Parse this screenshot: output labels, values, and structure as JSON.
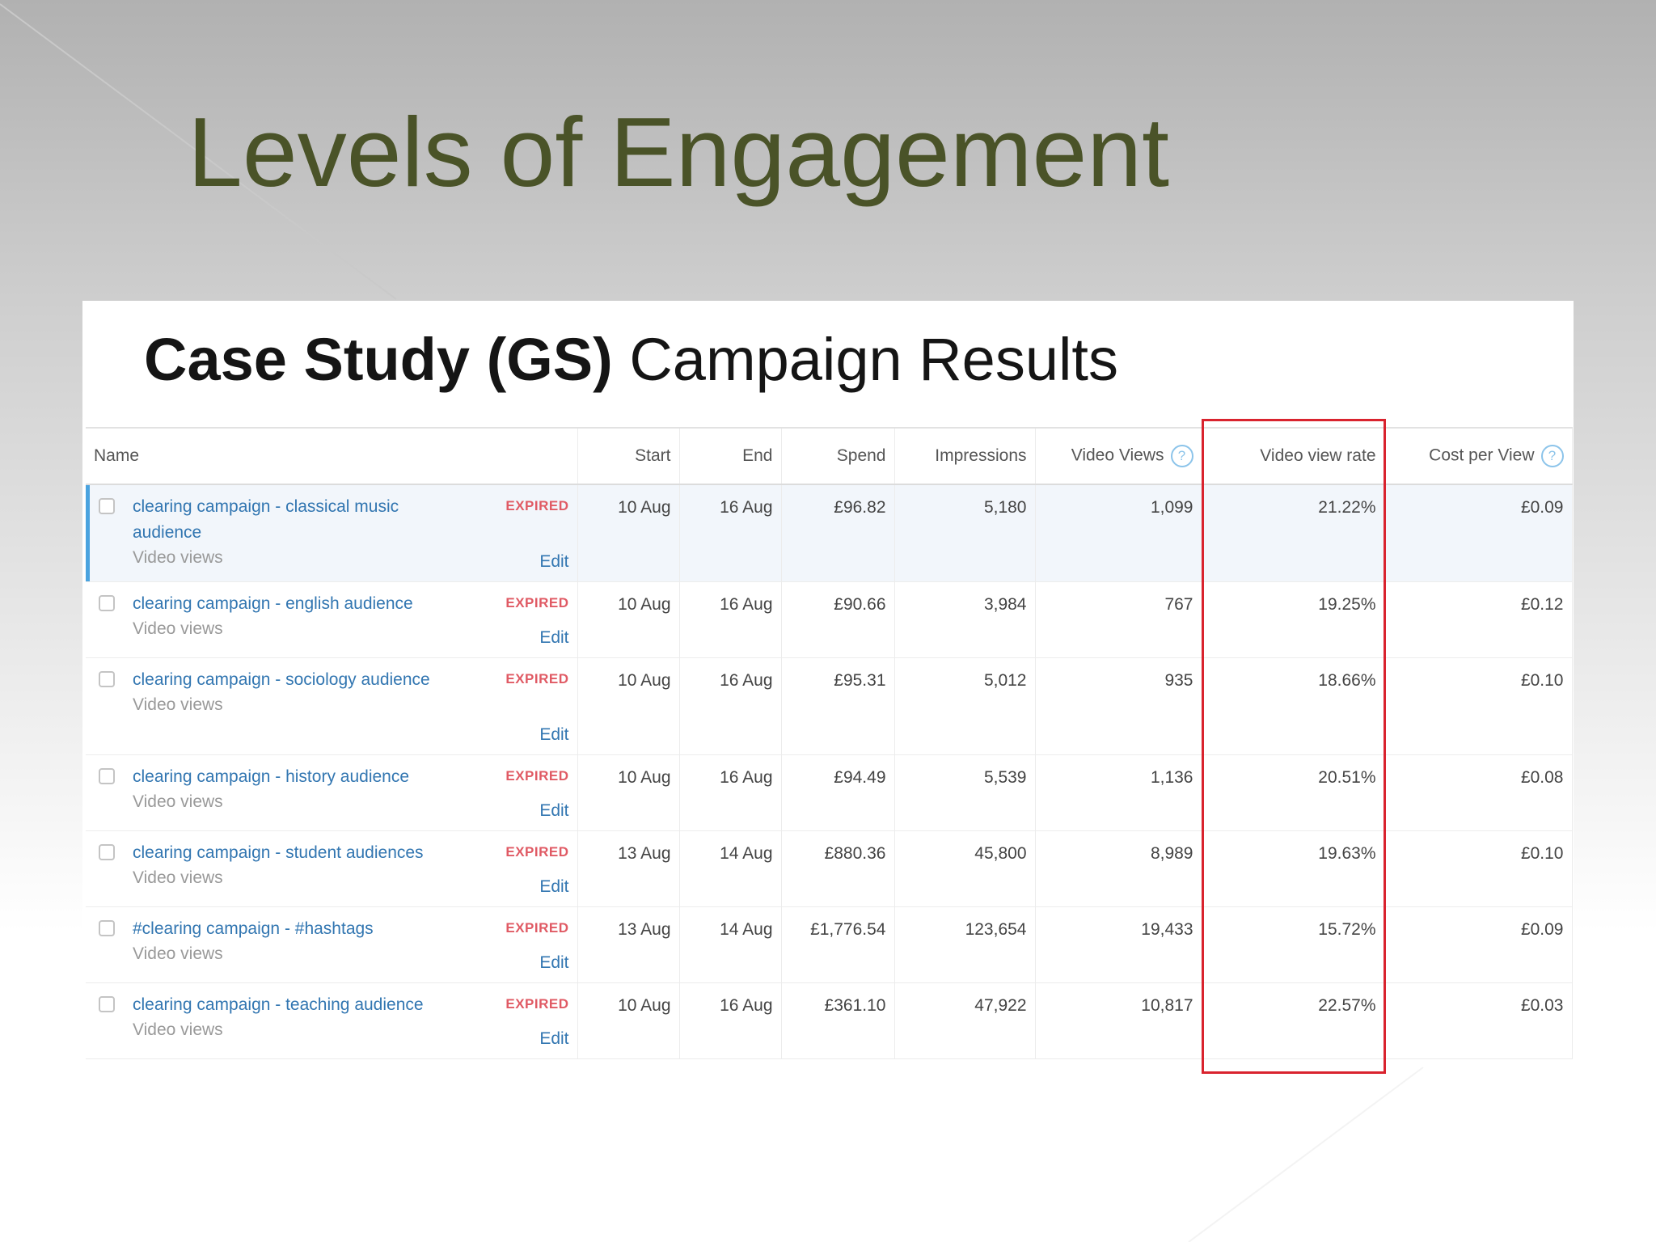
{
  "slide": {
    "title": "Levels of Engagement"
  },
  "panel": {
    "heading_bold": "Case Study (GS)",
    "heading_rest": "Campaign Results"
  },
  "table": {
    "headers": {
      "name": "Name",
      "start": "Start",
      "end": "End",
      "spend": "Spend",
      "impressions": "Impressions",
      "video_views": "Video Views",
      "video_view_rate": "Video view rate",
      "cost_per_view": "Cost per View",
      "help_glyph": "?"
    },
    "highlighted_column": "Video view rate",
    "rows": [
      {
        "name": "clearing campaign - classical music audience",
        "type": "Video views",
        "status": "EXPIRED",
        "action": "Edit",
        "start": "10 Aug",
        "end": "16 Aug",
        "spend": "£96.82",
        "impressions": "5,180",
        "video_views": "1,099",
        "video_view_rate": "21.22%",
        "cost_per_view": "£0.09"
      },
      {
        "name": "clearing campaign - english audience",
        "type": "Video views",
        "status": "EXPIRED",
        "action": "Edit",
        "start": "10 Aug",
        "end": "16 Aug",
        "spend": "£90.66",
        "impressions": "3,984",
        "video_views": "767",
        "video_view_rate": "19.25%",
        "cost_per_view": "£0.12"
      },
      {
        "name": "clearing campaign - sociology audience",
        "type": "Video views",
        "status": "EXPIRED",
        "action": "Edit",
        "start": "10 Aug",
        "end": "16 Aug",
        "spend": "£95.31",
        "impressions": "5,012",
        "video_views": "935",
        "video_view_rate": "18.66%",
        "cost_per_view": "£0.10"
      },
      {
        "name": "clearing campaign - history audience",
        "type": "Video views",
        "status": "EXPIRED",
        "action": "Edit",
        "start": "10 Aug",
        "end": "16 Aug",
        "spend": "£94.49",
        "impressions": "5,539",
        "video_views": "1,136",
        "video_view_rate": "20.51%",
        "cost_per_view": "£0.08"
      },
      {
        "name": "clearing campaign - student audiences",
        "type": "Video views",
        "status": "EXPIRED",
        "action": "Edit",
        "start": "13 Aug",
        "end": "14 Aug",
        "spend": "£880.36",
        "impressions": "45,800",
        "video_views": "8,989",
        "video_view_rate": "19.63%",
        "cost_per_view": "£0.10"
      },
      {
        "name": "#clearing campaign - #hashtags",
        "type": "Video views",
        "status": "EXPIRED",
        "action": "Edit",
        "start": "13 Aug",
        "end": "14 Aug",
        "spend": "£1,776.54",
        "impressions": "123,654",
        "video_views": "19,433",
        "video_view_rate": "15.72%",
        "cost_per_view": "£0.09"
      },
      {
        "name": "clearing campaign - teaching audience",
        "type": "Video views",
        "status": "EXPIRED",
        "action": "Edit",
        "start": "10 Aug",
        "end": "16 Aug",
        "spend": "£361.10",
        "impressions": "47,922",
        "video_views": "10,817",
        "video_view_rate": "22.57%",
        "cost_per_view": "£0.03"
      }
    ]
  },
  "colors": {
    "title": "#4a5328",
    "link": "#3276b1",
    "expired": "#e05a64",
    "highlight": "#d9232e",
    "selected_accent": "#4aa3df"
  }
}
